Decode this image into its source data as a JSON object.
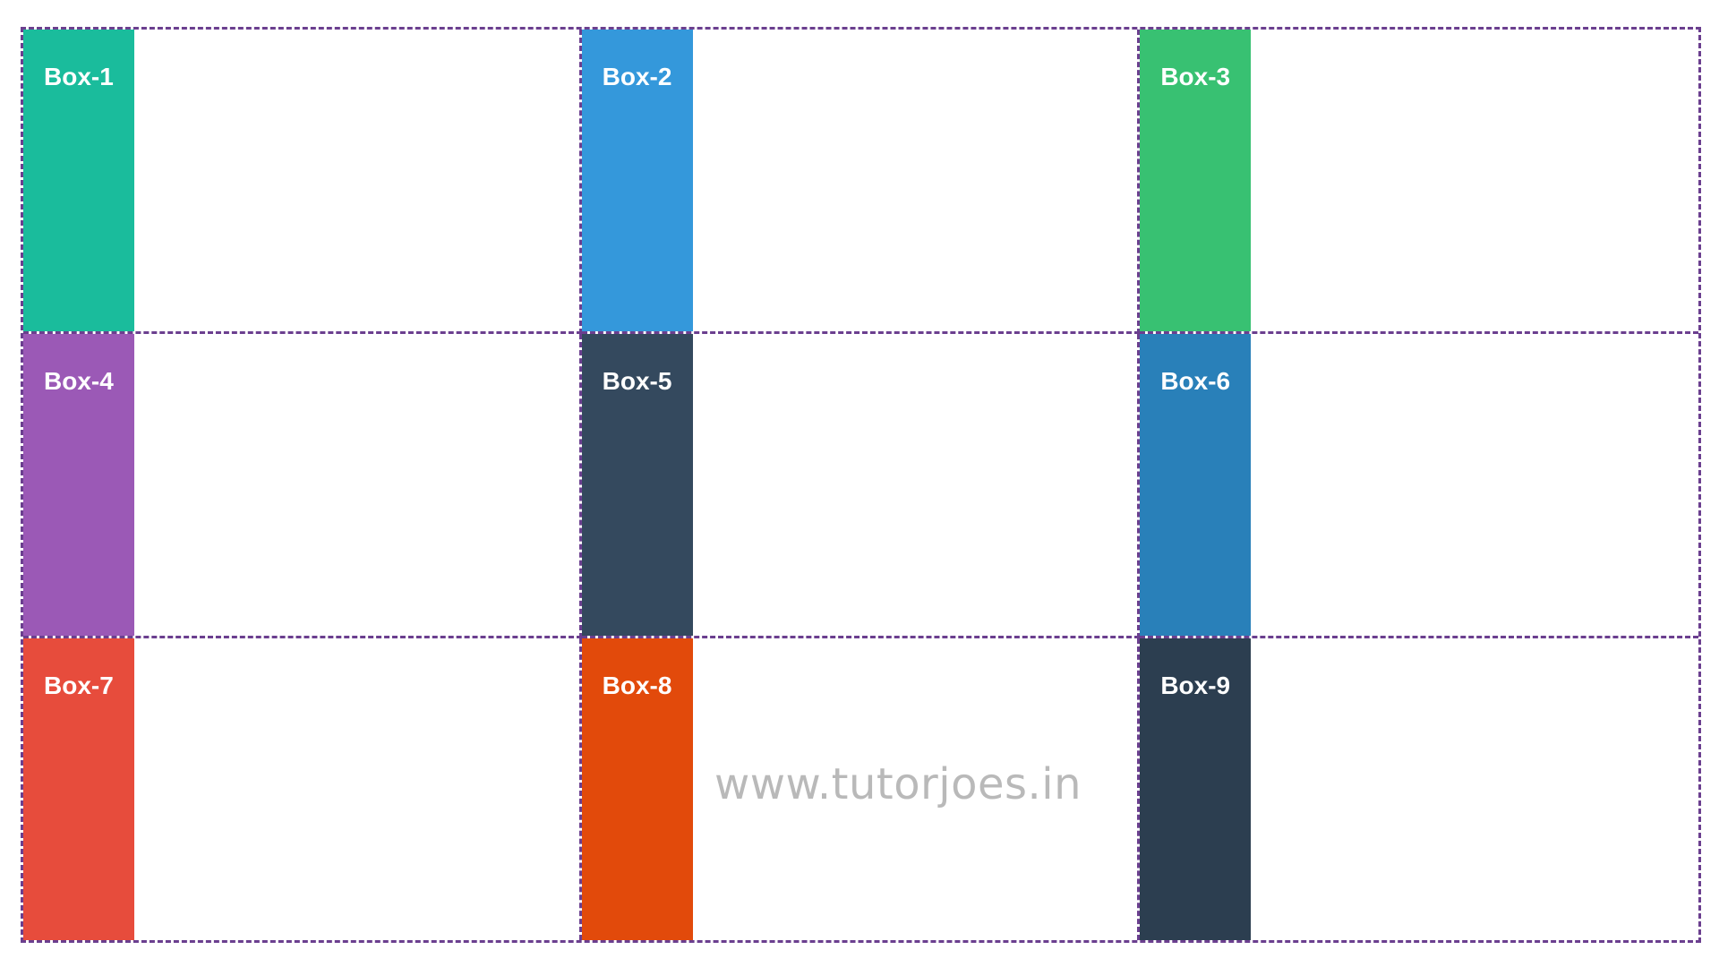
{
  "boxes": [
    {
      "label": "Box-1",
      "color": "#1abc9c"
    },
    {
      "label": "Box-2",
      "color": "#3498db"
    },
    {
      "label": "Box-3",
      "color": "#38c172"
    },
    {
      "label": "Box-4",
      "color": "#9b59b6"
    },
    {
      "label": "Box-5",
      "color": "#34495e"
    },
    {
      "label": "Box-6",
      "color": "#2980b9"
    },
    {
      "label": "Box-7",
      "color": "#e74c3c"
    },
    {
      "label": "Box-8",
      "color": "#e24a0b"
    },
    {
      "label": "Box-9",
      "color": "#2c3e50"
    }
  ],
  "grid_border_color": "#6b3f8f",
  "watermark": "www.tutorjoes.in"
}
